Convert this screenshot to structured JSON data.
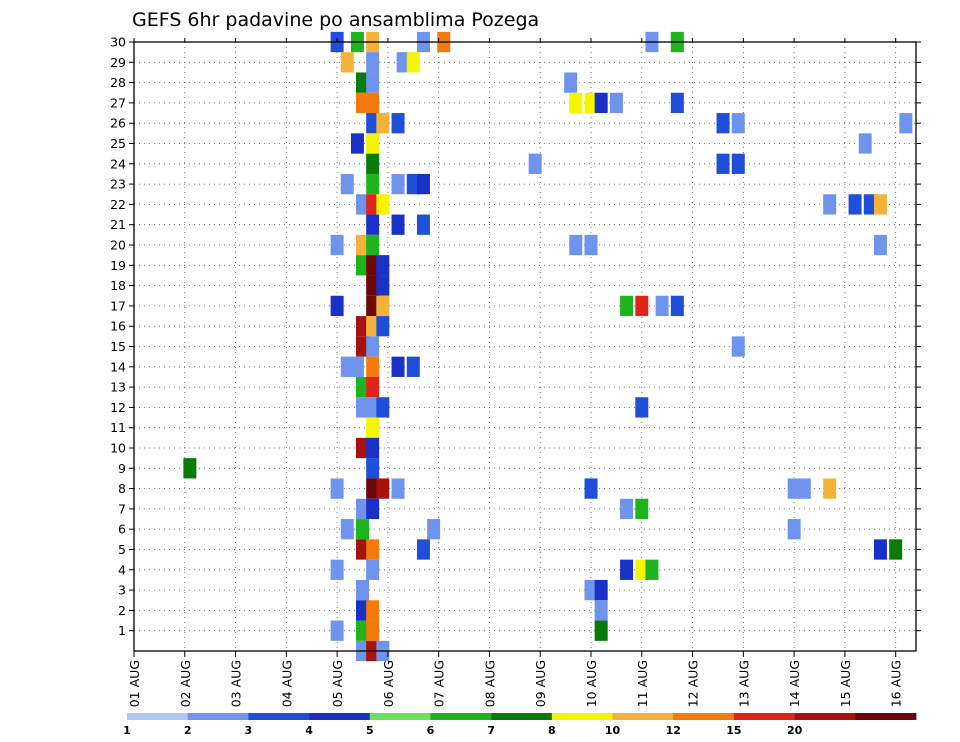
{
  "chart_data": {
    "type": "heatmap",
    "title": "GEFS 6hr padavine po ansamblima Pozega",
    "xlabel": "",
    "ylabel": "",
    "x_ticks": [
      "01 AUG",
      "02 AUG",
      "03 AUG",
      "04 AUG",
      "05 AUG",
      "06 AUG",
      "07 AUG",
      "08 AUG",
      "09 AUG",
      "10 AUG",
      "11 AUG",
      "12 AUG",
      "13 AUG",
      "14 AUG",
      "15 AUG",
      "16 AUG"
    ],
    "xlim_days": [
      1,
      16.4
    ],
    "y_ticks": [
      1,
      2,
      3,
      4,
      5,
      6,
      7,
      8,
      9,
      10,
      11,
      12,
      13,
      14,
      15,
      16,
      17,
      18,
      19,
      20,
      21,
      22,
      23,
      24,
      25,
      26,
      27,
      28,
      29,
      30
    ],
    "ylim": [
      0,
      30
    ],
    "grid": true,
    "colorbar": {
      "position": "bottom",
      "labels": [
        "1",
        "2",
        "3",
        "4",
        "5",
        "6",
        "7",
        "8",
        "10",
        "12",
        "15",
        "20"
      ],
      "colors": [
        "#b0c4f5",
        "#6f94ee",
        "#1f4fd8",
        "#1a31c8",
        "#6be05a",
        "#1eb41e",
        "#0a7a0a",
        "#f5f500",
        "#f5b23a",
        "#f57a0a",
        "#e0241a",
        "#a8120e",
        "#6e0808"
      ]
    },
    "cells": [
      [
        30,
        5.0,
        2
      ],
      [
        30,
        5.4,
        5
      ],
      [
        30,
        5.7,
        8
      ],
      [
        30,
        6.7,
        1
      ],
      [
        30,
        7.1,
        9
      ],
      [
        30,
        11.2,
        1
      ],
      [
        30,
        11.7,
        5
      ],
      [
        29,
        5.2,
        8
      ],
      [
        29,
        5.7,
        1
      ],
      [
        29,
        6.3,
        1
      ],
      [
        29,
        6.5,
        7
      ],
      [
        28,
        5.5,
        6
      ],
      [
        28,
        5.7,
        1
      ],
      [
        28,
        9.6,
        1
      ],
      [
        27,
        5.5,
        9
      ],
      [
        27,
        5.7,
        9
      ],
      [
        27,
        9.7,
        7
      ],
      [
        27,
        10.0,
        7
      ],
      [
        27,
        10.2,
        3
      ],
      [
        27,
        10.5,
        1
      ],
      [
        27,
        11.7,
        2
      ],
      [
        26,
        5.7,
        2
      ],
      [
        26,
        5.9,
        8
      ],
      [
        26,
        6.2,
        2
      ],
      [
        26,
        12.6,
        2
      ],
      [
        26,
        12.9,
        1
      ],
      [
        26,
        16.2,
        1
      ],
      [
        25,
        5.4,
        3
      ],
      [
        25,
        5.7,
        7
      ],
      [
        25,
        15.4,
        1
      ],
      [
        24,
        5.7,
        6
      ],
      [
        24,
        8.9,
        1
      ],
      [
        24,
        12.6,
        2
      ],
      [
        24,
        12.9,
        2
      ],
      [
        23,
        5.2,
        1
      ],
      [
        23,
        5.7,
        5
      ],
      [
        23,
        6.2,
        1
      ],
      [
        23,
        6.5,
        2
      ],
      [
        23,
        6.7,
        3
      ],
      [
        22,
        5.5,
        1
      ],
      [
        22,
        5.7,
        10
      ],
      [
        22,
        5.9,
        7
      ],
      [
        22,
        14.7,
        1
      ],
      [
        22,
        15.2,
        2
      ],
      [
        22,
        15.5,
        2
      ],
      [
        22,
        15.7,
        8
      ],
      [
        21,
        5.7,
        3
      ],
      [
        21,
        6.2,
        3
      ],
      [
        21,
        6.7,
        2
      ],
      [
        20,
        5.0,
        1
      ],
      [
        20,
        5.5,
        8
      ],
      [
        20,
        5.7,
        5
      ],
      [
        20,
        9.7,
        1
      ],
      [
        20,
        10.0,
        1
      ],
      [
        20,
        15.7,
        1
      ],
      [
        19,
        5.5,
        5
      ],
      [
        19,
        5.7,
        12
      ],
      [
        19,
        5.9,
        3
      ],
      [
        18,
        5.7,
        12
      ],
      [
        18,
        5.9,
        3
      ],
      [
        17,
        5.0,
        3
      ],
      [
        17,
        5.7,
        12
      ],
      [
        17,
        5.9,
        8
      ],
      [
        17,
        10.7,
        5
      ],
      [
        17,
        11.0,
        10
      ],
      [
        17,
        11.4,
        1
      ],
      [
        17,
        11.7,
        2
      ],
      [
        16,
        5.5,
        11
      ],
      [
        16,
        5.7,
        8
      ],
      [
        16,
        5.9,
        2
      ],
      [
        15,
        5.5,
        11
      ],
      [
        15,
        5.7,
        1
      ],
      [
        15,
        12.9,
        1
      ],
      [
        14,
        5.2,
        1
      ],
      [
        14,
        5.4,
        1
      ],
      [
        14,
        5.7,
        9
      ],
      [
        14,
        6.2,
        3
      ],
      [
        14,
        6.5,
        2
      ],
      [
        13,
        5.5,
        5
      ],
      [
        13,
        5.7,
        10
      ],
      [
        12,
        5.5,
        1
      ],
      [
        12,
        5.7,
        1
      ],
      [
        12,
        5.9,
        2
      ],
      [
        12,
        11.0,
        2
      ],
      [
        11,
        5.7,
        7
      ],
      [
        10,
        5.5,
        11
      ],
      [
        10,
        5.7,
        3
      ],
      [
        9,
        2.1,
        6
      ],
      [
        9,
        5.7,
        2
      ],
      [
        8,
        5.0,
        1
      ],
      [
        8,
        5.7,
        12
      ],
      [
        8,
        5.9,
        11
      ],
      [
        8,
        6.2,
        1
      ],
      [
        8,
        10.0,
        2
      ],
      [
        8,
        14.0,
        1
      ],
      [
        8,
        14.2,
        1
      ],
      [
        8,
        14.7,
        8
      ],
      [
        7,
        5.5,
        1
      ],
      [
        7,
        5.7,
        3
      ],
      [
        7,
        10.7,
        1
      ],
      [
        7,
        11.0,
        5
      ],
      [
        6,
        5.2,
        1
      ],
      [
        6,
        5.5,
        5
      ],
      [
        6,
        6.9,
        1
      ],
      [
        6,
        14.0,
        1
      ],
      [
        5,
        5.5,
        11
      ],
      [
        5,
        5.7,
        9
      ],
      [
        5,
        6.7,
        2
      ],
      [
        5,
        15.7,
        3
      ],
      [
        5,
        16.0,
        6
      ],
      [
        4,
        5.0,
        1
      ],
      [
        4,
        5.7,
        1
      ],
      [
        4,
        10.7,
        3
      ],
      [
        4,
        11.0,
        7
      ],
      [
        4,
        11.2,
        5
      ],
      [
        3,
        5.5,
        1
      ],
      [
        3,
        10.0,
        1
      ],
      [
        3,
        10.2,
        3
      ],
      [
        2,
        5.5,
        3
      ],
      [
        2,
        5.7,
        9
      ],
      [
        2,
        10.2,
        1
      ],
      [
        1,
        5.0,
        1
      ],
      [
        1,
        5.5,
        5
      ],
      [
        1,
        5.7,
        9
      ],
      [
        1,
        10.2,
        6
      ],
      [
        0,
        5.5,
        1
      ],
      [
        0,
        5.7,
        11
      ],
      [
        0,
        5.9,
        1
      ]
    ]
  }
}
